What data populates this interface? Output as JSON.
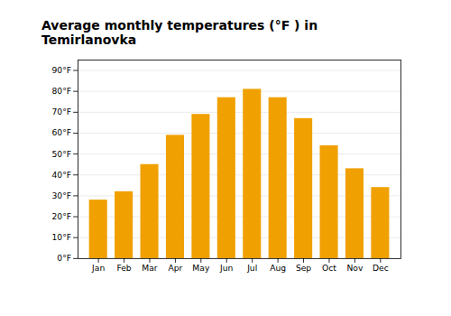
{
  "chart_data": {
    "type": "bar",
    "title": "Average monthly temperatures (°F ) in Temirlanovka",
    "categories": [
      "Jan",
      "Feb",
      "Mar",
      "Apr",
      "May",
      "Jun",
      "Jul",
      "Aug",
      "Sep",
      "Oct",
      "Nov",
      "Dec"
    ],
    "values": [
      28,
      32,
      45,
      59,
      69,
      77,
      81,
      77,
      67,
      54,
      43,
      34
    ],
    "color": "#F0A000",
    "ylim": [
      0,
      95
    ],
    "yticks": [
      {
        "value": 0,
        "label": "0°F"
      },
      {
        "value": 10,
        "label": "10°F"
      },
      {
        "value": 20,
        "label": "20°F"
      },
      {
        "value": 30,
        "label": "30°F"
      },
      {
        "value": 40,
        "label": "40°F"
      },
      {
        "value": 50,
        "label": "50°F"
      },
      {
        "value": 60,
        "label": "60°F"
      },
      {
        "value": 70,
        "label": "70°F"
      },
      {
        "value": 80,
        "label": "80°F"
      },
      {
        "value": 90,
        "label": "90°F"
      }
    ],
    "grid": true
  }
}
